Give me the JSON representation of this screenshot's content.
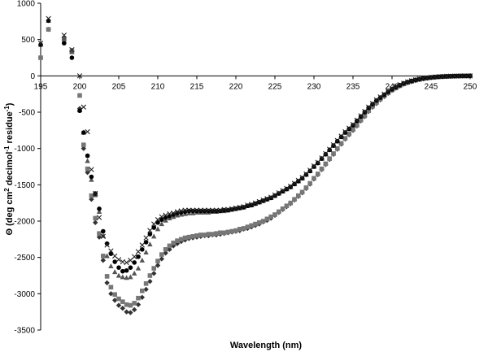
{
  "chart_data": {
    "type": "scatter",
    "title": "",
    "xlabel": "Wavelength (nm)",
    "ylabel": "Θ (deg cm",
    "ylabel_sup1": "2",
    "ylabel_mid": " decimol",
    "ylabel_sup2": "-1",
    "ylabel_end": " residue",
    "ylabel_sup3": "-1",
    "ylabel_close": ")",
    "xlim": [
      195,
      250
    ],
    "ylim": [
      -3500,
      1000
    ],
    "xticks": [
      195,
      200,
      205,
      210,
      215,
      220,
      225,
      230,
      235,
      240,
      245,
      250
    ],
    "yticks": [
      1000,
      500,
      0,
      -500,
      -1000,
      -1500,
      -2000,
      -2500,
      -3000,
      -3500
    ],
    "grid": false,
    "legend": "none",
    "series": [
      {
        "marker": "diamond",
        "color": "#333333",
        "x": [
          195,
          196,
          198,
          199,
          200,
          200.5,
          201,
          201.5,
          202,
          202.5,
          203,
          203.5,
          204,
          204.5,
          205,
          205.5,
          206,
          206.5,
          207,
          207.5,
          208,
          208.5,
          209,
          209.5,
          210,
          210.5,
          211,
          211.5,
          212,
          212.5,
          213,
          213.5,
          214,
          214.5,
          215,
          215.5,
          216,
          216.5,
          217,
          217.5,
          218,
          218.5,
          219,
          219.5,
          220,
          220.5,
          221,
          221.5,
          222,
          222.5,
          223,
          223.5,
          224,
          224.5,
          225,
          225.5,
          226,
          226.5,
          227,
          227.5,
          228,
          228.5,
          229,
          229.5,
          230,
          230.5,
          231,
          231.5,
          232,
          232.5,
          233,
          233.5,
          234,
          234.5,
          235,
          235.5,
          236,
          236.5,
          237,
          237.5,
          238,
          238.5,
          239,
          239.5,
          240,
          240.5,
          241,
          241.5,
          242,
          242.5,
          243,
          243.5,
          244,
          244.5,
          245,
          245.5,
          246,
          246.5,
          247,
          247.5,
          248,
          248.5,
          249,
          249.5,
          250
        ],
        "y": [
          250,
          640,
          520,
          350,
          -450,
          -1000,
          -1330,
          -1700,
          -2020,
          -2220,
          -2540,
          -2850,
          -3000,
          -3090,
          -3160,
          -3200,
          -3250,
          -3260,
          -3220,
          -3150,
          -3050,
          -2940,
          -2830,
          -2720,
          -2610,
          -2520,
          -2440,
          -2390,
          -2340,
          -2310,
          -2280,
          -2260,
          -2240,
          -2230,
          -2220,
          -2210,
          -2200,
          -2200,
          -2190,
          -2190,
          -2180,
          -2170,
          -2160,
          -2150,
          -2140,
          -2130,
          -2110,
          -2100,
          -2080,
          -2060,
          -2040,
          -2010,
          -1990,
          -1960,
          -1920,
          -1880,
          -1840,
          -1800,
          -1760,
          -1710,
          -1660,
          -1610,
          -1550,
          -1490,
          -1420,
          -1360,
          -1290,
          -1220,
          -1150,
          -1080,
          -1010,
          -940,
          -870,
          -810,
          -750,
          -690,
          -620,
          -560,
          -490,
          -430,
          -380,
          -330,
          -285,
          -240,
          -200,
          -170,
          -140,
          -115,
          -95,
          -80,
          -65,
          -52,
          -40,
          -32,
          -25,
          -20,
          -15,
          -12,
          -9,
          -7,
          -5,
          -3,
          -2,
          -1,
          0
        ]
      },
      {
        "marker": "square",
        "color": "#777777",
        "x": [
          195,
          196,
          198,
          199,
          200,
          200.5,
          201,
          201.5,
          202,
          202.5,
          203,
          203.5,
          204,
          204.5,
          205,
          205.5,
          206,
          206.5,
          207,
          207.5,
          208,
          208.5,
          209,
          209.5,
          210,
          210.5,
          211,
          211.5,
          212,
          212.5,
          213,
          213.5,
          214,
          214.5,
          215,
          215.5,
          216,
          216.5,
          217,
          217.5,
          218,
          218.5,
          219,
          219.5,
          220,
          220.5,
          221,
          221.5,
          222,
          222.5,
          223,
          223.5,
          224,
          224.5,
          225,
          225.5,
          226,
          226.5,
          227,
          227.5,
          228,
          228.5,
          229,
          229.5,
          230,
          230.5,
          231,
          231.5,
          232,
          232.5,
          233,
          233.5,
          234,
          234.5,
          235,
          235.5,
          236,
          236.5,
          237,
          237.5,
          238,
          238.5,
          239,
          239.5,
          240,
          240.5,
          241,
          241.5,
          242,
          242.5,
          243,
          243.5,
          244,
          244.5,
          245,
          245.5,
          246,
          246.5,
          247,
          247.5,
          248,
          248.5,
          249,
          249.5,
          250
        ],
        "y": [
          250,
          640,
          500,
          340,
          -270,
          -950,
          -1280,
          -1650,
          -1960,
          -2170,
          -2480,
          -2760,
          -2910,
          -3010,
          -3070,
          -3110,
          -3150,
          -3160,
          -3130,
          -3060,
          -2960,
          -2860,
          -2750,
          -2650,
          -2550,
          -2460,
          -2390,
          -2340,
          -2300,
          -2270,
          -2250,
          -2230,
          -2220,
          -2210,
          -2200,
          -2190,
          -2190,
          -2180,
          -2180,
          -2170,
          -2160,
          -2160,
          -2150,
          -2140,
          -2130,
          -2110,
          -2100,
          -2080,
          -2060,
          -2040,
          -2020,
          -2000,
          -1970,
          -1940,
          -1910,
          -1870,
          -1830,
          -1790,
          -1750,
          -1700,
          -1650,
          -1600,
          -1540,
          -1480,
          -1410,
          -1350,
          -1280,
          -1210,
          -1140,
          -1070,
          -1000,
          -930,
          -860,
          -800,
          -740,
          -680,
          -610,
          -550,
          -480,
          -420,
          -370,
          -320,
          -275,
          -235,
          -195,
          -165,
          -135,
          -110,
          -90,
          -75,
          -60,
          -48,
          -37,
          -29,
          -22,
          -17,
          -13,
          -10,
          -7,
          -5,
          -4,
          -2,
          -1,
          -1,
          0
        ]
      },
      {
        "marker": "triangle",
        "color": "#555555",
        "x": [
          195,
          196,
          198,
          199,
          200,
          200.5,
          201,
          201.5,
          202,
          202.5,
          203,
          203.5,
          204,
          204.5,
          205,
          205.5,
          206,
          206.5,
          207,
          207.5,
          208,
          208.5,
          209,
          209.5,
          210,
          210.5,
          211,
          211.5,
          212,
          212.5,
          213,
          213.5,
          214,
          214.5,
          215,
          215.5,
          216,
          216.5,
          217,
          217.5,
          218,
          218.5,
          219,
          219.5,
          220,
          220.5,
          221,
          221.5,
          222,
          222.5,
          223,
          223.5,
          224,
          224.5,
          225,
          225.5,
          226,
          226.5,
          227,
          227.5,
          228,
          228.5,
          229,
          229.5,
          230,
          230.5,
          231,
          231.5,
          232,
          232.5,
          233,
          233.5,
          234,
          234.5,
          235,
          235.5,
          236,
          236.5,
          237,
          237.5,
          238,
          238.5,
          239,
          239.5,
          240,
          240.5,
          241,
          241.5,
          242,
          242.5,
          243,
          243.5,
          244,
          244.5,
          245,
          245.5,
          246,
          246.5,
          247,
          247.5,
          248,
          248.5,
          249,
          249.5,
          250
        ],
        "y": [
          430,
          760,
          520,
          330,
          -470,
          -780,
          -1170,
          -1430,
          -1640,
          -1870,
          -2200,
          -2480,
          -2620,
          -2700,
          -2750,
          -2770,
          -2780,
          -2770,
          -2720,
          -2650,
          -2540,
          -2430,
          -2320,
          -2210,
          -2110,
          -2040,
          -1990,
          -1960,
          -1940,
          -1920,
          -1910,
          -1900,
          -1890,
          -1890,
          -1880,
          -1880,
          -1880,
          -1880,
          -1870,
          -1870,
          -1860,
          -1860,
          -1850,
          -1840,
          -1830,
          -1820,
          -1810,
          -1790,
          -1780,
          -1760,
          -1740,
          -1720,
          -1700,
          -1680,
          -1650,
          -1620,
          -1590,
          -1560,
          -1530,
          -1490,
          -1450,
          -1410,
          -1360,
          -1310,
          -1250,
          -1200,
          -1140,
          -1080,
          -1020,
          -960,
          -900,
          -840,
          -780,
          -730,
          -680,
          -620,
          -560,
          -500,
          -440,
          -390,
          -340,
          -300,
          -260,
          -220,
          -185,
          -155,
          -128,
          -104,
          -85,
          -70,
          -56,
          -45,
          -35,
          -27,
          -21,
          -16,
          -12,
          -9,
          -7,
          -5,
          -3,
          -2,
          -1,
          -1,
          0
        ]
      },
      {
        "marker": "circle",
        "color": "#000000",
        "x": [
          195,
          196,
          198,
          199,
          200,
          200.5,
          201,
          201.5,
          202,
          202.5,
          203,
          203.5,
          204,
          204.5,
          205,
          205.5,
          206,
          206.5,
          207,
          207.5,
          208,
          208.5,
          209,
          209.5,
          210,
          210.5,
          211,
          211.5,
          212,
          212.5,
          213,
          213.5,
          214,
          214.5,
          215,
          215.5,
          216,
          216.5,
          217,
          217.5,
          218,
          218.5,
          219,
          219.5,
          220,
          220.5,
          221,
          221.5,
          222,
          222.5,
          223,
          223.5,
          224,
          224.5,
          225,
          225.5,
          226,
          226.5,
          227,
          227.5,
          228,
          228.5,
          229,
          229.5,
          230,
          230.5,
          231,
          231.5,
          232,
          232.5,
          233,
          233.5,
          234,
          234.5,
          235,
          235.5,
          236,
          236.5,
          237,
          237.5,
          238,
          238.5,
          239,
          239.5,
          240,
          240.5,
          241,
          241.5,
          242,
          242.5,
          243,
          243.5,
          244,
          244.5,
          245,
          245.5,
          246,
          246.5,
          247,
          247.5,
          248,
          248.5,
          249,
          249.5,
          250
        ],
        "y": [
          430,
          760,
          450,
          250,
          -480,
          -780,
          -1100,
          -1390,
          -1620,
          -1830,
          -2140,
          -2310,
          -2450,
          -2560,
          -2640,
          -2690,
          -2680,
          -2640,
          -2570,
          -2490,
          -2390,
          -2290,
          -2180,
          -2090,
          -2020,
          -1980,
          -1950,
          -1930,
          -1910,
          -1890,
          -1880,
          -1870,
          -1860,
          -1860,
          -1860,
          -1860,
          -1860,
          -1860,
          -1860,
          -1860,
          -1860,
          -1850,
          -1850,
          -1840,
          -1830,
          -1820,
          -1810,
          -1790,
          -1780,
          -1760,
          -1740,
          -1720,
          -1700,
          -1680,
          -1650,
          -1620,
          -1590,
          -1560,
          -1530,
          -1490,
          -1450,
          -1410,
          -1360,
          -1310,
          -1250,
          -1200,
          -1140,
          -1080,
          -1020,
          -960,
          -900,
          -840,
          -780,
          -730,
          -680,
          -620,
          -560,
          -500,
          -440,
          -390,
          -340,
          -300,
          -260,
          -220,
          -185,
          -155,
          -128,
          -104,
          -85,
          -70,
          -56,
          -45,
          -35,
          -27,
          -21,
          -16,
          -12,
          -9,
          -7,
          -5,
          -3,
          -2,
          -1,
          -1,
          0
        ]
      },
      {
        "marker": "x",
        "color": "#222222",
        "x": [
          195,
          196,
          198,
          199,
          200,
          200.5,
          201,
          201.5,
          202,
          202.5,
          203,
          203.5,
          204,
          204.5,
          205,
          205.5,
          206,
          206.5,
          207,
          207.5,
          208,
          208.5,
          209,
          209.5,
          210,
          210.5,
          211,
          211.5,
          212,
          212.5,
          213,
          213.5,
          214,
          214.5,
          215,
          215.5,
          216,
          216.5,
          217,
          217.5,
          218,
          218.5,
          219,
          219.5,
          220,
          220.5,
          221,
          221.5,
          222,
          222.5,
          223,
          223.5,
          224,
          224.5,
          225,
          225.5,
          226,
          226.5,
          227,
          227.5,
          228,
          228.5,
          229,
          229.5,
          230,
          230.5,
          231,
          231.5,
          232,
          232.5,
          233,
          233.5,
          234,
          234.5,
          235,
          235.5,
          236,
          236.5,
          237,
          237.5,
          238,
          238.5,
          239,
          239.5,
          240,
          240.5,
          241,
          241.5,
          242,
          242.5,
          243,
          243.5,
          244,
          244.5,
          245,
          245.5,
          246,
          246.5,
          247,
          247.5,
          248,
          248.5,
          249,
          249.5,
          250
        ],
        "y": [
          450,
          790,
          560,
          360,
          0,
          -430,
          -770,
          -1290,
          -1620,
          -1950,
          -2210,
          -2330,
          -2410,
          -2480,
          -2530,
          -2560,
          -2570,
          -2540,
          -2490,
          -2420,
          -2330,
          -2230,
          -2130,
          -2040,
          -1980,
          -1940,
          -1920,
          -1900,
          -1890,
          -1870,
          -1860,
          -1850,
          -1850,
          -1850,
          -1850,
          -1850,
          -1850,
          -1850,
          -1850,
          -1850,
          -1850,
          -1840,
          -1840,
          -1830,
          -1820,
          -1810,
          -1800,
          -1780,
          -1770,
          -1750,
          -1730,
          -1710,
          -1690,
          -1670,
          -1640,
          -1610,
          -1580,
          -1550,
          -1520,
          -1480,
          -1440,
          -1400,
          -1350,
          -1300,
          -1240,
          -1190,
          -1130,
          -1070,
          -1010,
          -950,
          -890,
          -830,
          -770,
          -720,
          -670,
          -610,
          -550,
          -490,
          -430,
          -380,
          -330,
          -290,
          -250,
          -210,
          -178,
          -148,
          -122,
          -100,
          -82,
          -67,
          -54,
          -43,
          -34,
          -26,
          -20,
          -15,
          -11,
          -8,
          -6,
          -4,
          -3,
          -2,
          -1,
          -1,
          0
        ]
      }
    ]
  }
}
